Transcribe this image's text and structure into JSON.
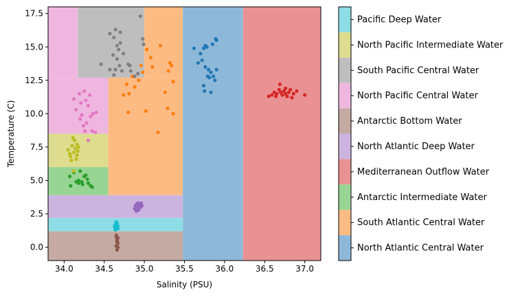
{
  "chart_data": {
    "type": "scatter",
    "title": "",
    "xlabel": "Salinity (PSU)",
    "ylabel": "Temperature (C)",
    "xlim": [
      33.8,
      37.2
    ],
    "ylim": [
      -1.0,
      18.0
    ],
    "xticks": [
      {
        "value": 34.0,
        "label": "34.0"
      },
      {
        "value": 34.5,
        "label": "34.5"
      },
      {
        "value": 35.0,
        "label": "35.0"
      },
      {
        "value": 35.5,
        "label": "35.5"
      },
      {
        "value": 36.0,
        "label": "36.0"
      },
      {
        "value": 36.5,
        "label": "36.5"
      },
      {
        "value": 37.0,
        "label": "37.0"
      }
    ],
    "yticks": [
      {
        "value": 0.0,
        "label": "0.0"
      },
      {
        "value": 2.5,
        "label": "2.5"
      },
      {
        "value": 5.0,
        "label": "5.0"
      },
      {
        "value": 7.5,
        "label": "7.5"
      },
      {
        "value": 10.0,
        "label": "10.0"
      },
      {
        "value": 12.5,
        "label": "12.5"
      },
      {
        "value": 15.0,
        "label": "15.0"
      },
      {
        "value": 17.5,
        "label": "17.5"
      }
    ],
    "grid": false,
    "colorbar_labels": [
      "North Atlantic Central Water",
      "South Atlantic Central Water",
      "Antarctic Intermediate Water",
      "Mediterranean Outflow Water",
      "North Atlantic Deep Water",
      "Antarctic Bottom Water",
      "North Pacific Central Water",
      "South Pacific Central Water",
      "North Pacific Intermediate Water",
      "Pacific Deep Water"
    ],
    "colorbar_colors": [
      "#8eb8d9",
      "#fdbb84",
      "#98d594",
      "#ea9293",
      "#cbb4e0",
      "#c4aaa3",
      "#efb7e0",
      "#bebebe",
      "#dedc8e",
      "#8edde6"
    ],
    "regions": [
      {
        "name": "Antarctic Bottom Water",
        "x": [
          33.8,
          35.48
        ],
        "y": [
          -1.0,
          1.2
        ],
        "color": "#c4aaa3"
      },
      {
        "name": "Pacific Deep Water",
        "x": [
          33.8,
          35.48
        ],
        "y": [
          1.2,
          2.2
        ],
        "color": "#8eddE6"
      },
      {
        "name": "North Atlantic Deep Water",
        "x": [
          33.8,
          35.48
        ],
        "y": [
          2.2,
          3.9
        ],
        "color": "#cbb4e0"
      },
      {
        "name": "Antarctic Intermediate Water",
        "x": [
          33.8,
          34.55
        ],
        "y": [
          3.9,
          6.0
        ],
        "color": "#98d594"
      },
      {
        "name": "North Pacific Intermediate Water",
        "x": [
          33.8,
          34.55
        ],
        "y": [
          6.0,
          8.5
        ],
        "color": "#dedc8e"
      },
      {
        "name": "North Pacific Central Water",
        "x": [
          33.8,
          34.55
        ],
        "y": [
          8.5,
          12.7
        ],
        "color": "#efb7e0"
      },
      {
        "name": "North Pacific Central Water",
        "x": [
          33.8,
          34.17
        ],
        "y": [
          12.7,
          18.0
        ],
        "color": "#efb7e0"
      },
      {
        "name": "South Pacific Central Water",
        "x": [
          34.17,
          35.0
        ],
        "y": [
          12.7,
          18.0
        ],
        "color": "#bebebe"
      },
      {
        "name": "South Atlantic Central Water",
        "x": [
          34.55,
          35.48
        ],
        "y": [
          3.9,
          12.7
        ],
        "color": "#fdbb84"
      },
      {
        "name": "South Atlantic Central Water",
        "x": [
          35.0,
          35.48
        ],
        "y": [
          12.7,
          18.0
        ],
        "color": "#fdbb84"
      },
      {
        "name": "North Atlantic Central Water",
        "x": [
          35.48,
          36.23
        ],
        "y": [
          -1.0,
          18.0
        ],
        "color": "#8eb8d9"
      },
      {
        "name": "Mediterranean Outflow Water",
        "x": [
          36.23,
          37.2
        ],
        "y": [
          -1.0,
          18.0
        ],
        "color": "#ea9293"
      }
    ],
    "series": [
      {
        "name": "North Atlantic Central Water",
        "color": "#1f77b4",
        "points": [
          [
            35.62,
            14.9
          ],
          [
            35.7,
            14.5
          ],
          [
            35.74,
            14.9
          ],
          [
            35.76,
            15.1
          ],
          [
            35.78,
            15.0
          ],
          [
            35.85,
            15.2
          ],
          [
            35.89,
            15.6
          ],
          [
            35.9,
            15.5
          ],
          [
            35.67,
            13.8
          ],
          [
            35.72,
            14.0
          ],
          [
            35.76,
            13.5
          ],
          [
            35.8,
            13.3
          ],
          [
            35.83,
            13.1
          ],
          [
            35.86,
            12.8
          ],
          [
            35.9,
            13.3
          ],
          [
            35.79,
            12.8
          ],
          [
            35.81,
            12.7
          ],
          [
            35.74,
            12.1
          ],
          [
            35.88,
            12.5
          ],
          [
            35.75,
            11.7
          ],
          [
            35.83,
            11.6
          ]
        ]
      },
      {
        "name": "South Atlantic Central Water",
        "color": "#ff7f0e",
        "points": [
          [
            34.74,
            11.4
          ],
          [
            34.78,
            12.2
          ],
          [
            34.81,
            11.5
          ],
          [
            34.85,
            12.8
          ],
          [
            34.88,
            12.0
          ],
          [
            34.93,
            12.5
          ],
          [
            34.96,
            13.6
          ],
          [
            34.98,
            13.1
          ],
          [
            35.03,
            14.8
          ],
          [
            35.08,
            14.2
          ],
          [
            35.1,
            13.5
          ],
          [
            35.2,
            15.1
          ],
          [
            35.26,
            11.6
          ],
          [
            35.3,
            13.2
          ],
          [
            35.32,
            13.8
          ],
          [
            35.34,
            13.6
          ],
          [
            35.36,
            12.4
          ],
          [
            34.8,
            10.1
          ],
          [
            35.02,
            10.2
          ],
          [
            35.29,
            10.4
          ],
          [
            35.36,
            10.0
          ],
          [
            35.17,
            8.6
          ]
        ]
      },
      {
        "name": "Antarctic Intermediate Water",
        "color": "#2ca02c",
        "points": [
          [
            34.07,
            5.3
          ],
          [
            34.08,
            4.6
          ],
          [
            34.12,
            5.6
          ],
          [
            34.15,
            4.9
          ],
          [
            34.18,
            4.8
          ],
          [
            34.2,
            5.7
          ],
          [
            34.23,
            4.7
          ],
          [
            34.25,
            5.3
          ],
          [
            34.27,
            5.4
          ],
          [
            34.29,
            5.1
          ],
          [
            34.3,
            4.8
          ],
          [
            34.33,
            4.6
          ],
          [
            34.35,
            4.5
          ],
          [
            34.22,
            4.9
          ],
          [
            34.18,
            5.0
          ]
        ]
      },
      {
        "name": "Mediterranean Outflow Water",
        "color": "#d62728",
        "points": [
          [
            36.55,
            11.3
          ],
          [
            36.59,
            11.4
          ],
          [
            36.62,
            11.6
          ],
          [
            36.65,
            11.5
          ],
          [
            36.68,
            11.8
          ],
          [
            36.7,
            11.6
          ],
          [
            36.72,
            11.4
          ],
          [
            36.74,
            11.7
          ],
          [
            36.76,
            11.5
          ],
          [
            36.78,
            11.3
          ],
          [
            36.8,
            11.6
          ],
          [
            36.82,
            11.8
          ],
          [
            36.84,
            11.2
          ],
          [
            36.86,
            11.5
          ],
          [
            36.9,
            11.7
          ],
          [
            36.69,
            12.2
          ],
          [
            36.64,
            11.3
          ],
          [
            36.76,
            11.9
          ],
          [
            37.0,
            11.4
          ]
        ]
      },
      {
        "name": "North Atlantic Deep Water",
        "color": "#9467bd",
        "points": [
          [
            34.88,
            2.9
          ],
          [
            34.89,
            3.1
          ],
          [
            34.9,
            3.2
          ],
          [
            34.91,
            3.0
          ],
          [
            34.92,
            3.3
          ],
          [
            34.93,
            2.8
          ],
          [
            34.94,
            3.2
          ],
          [
            34.95,
            3.0
          ],
          [
            34.96,
            3.3
          ],
          [
            34.9,
            2.7
          ],
          [
            34.93,
            3.1
          ],
          [
            34.97,
            3.1
          ]
        ]
      },
      {
        "name": "Antarctic Bottom Water",
        "color": "#8c564b",
        "points": [
          [
            34.65,
            0.9
          ],
          [
            34.66,
            0.6
          ],
          [
            34.67,
            0.3
          ],
          [
            34.65,
            0.1
          ],
          [
            34.66,
            -0.2
          ],
          [
            34.67,
            0.7
          ],
          [
            34.66,
            0.4
          ],
          [
            34.65,
            0.8
          ],
          [
            34.67,
            0.0
          ],
          [
            34.66,
            0.5
          ]
        ]
      },
      {
        "name": "North Pacific Central Water",
        "color": "#e377c2",
        "points": [
          [
            34.12,
            11.1
          ],
          [
            34.15,
            10.3
          ],
          [
            34.19,
            11.5
          ],
          [
            34.21,
            10.8
          ],
          [
            34.25,
            11.7
          ],
          [
            34.27,
            11.0
          ],
          [
            34.3,
            10.6
          ],
          [
            34.33,
            9.8
          ],
          [
            34.36,
            10.0
          ],
          [
            34.4,
            10.1
          ],
          [
            34.2,
            9.6
          ],
          [
            34.24,
            9.1
          ],
          [
            34.26,
            8.7
          ],
          [
            34.3,
            8.0
          ],
          [
            34.35,
            8.7
          ],
          [
            34.39,
            8.6
          ],
          [
            34.22,
            9.9
          ],
          [
            34.28,
            9.3
          ],
          [
            34.32,
            11.4
          ]
        ]
      },
      {
        "name": "South Pacific Central Water",
        "color": "#7f7f7f",
        "points": [
          [
            34.57,
            16.0
          ],
          [
            34.64,
            16.3
          ],
          [
            34.7,
            16.1
          ],
          [
            34.95,
            17.3
          ],
          [
            34.62,
            15.7
          ],
          [
            34.66,
            15.1
          ],
          [
            34.68,
            14.8
          ],
          [
            34.7,
            15.3
          ],
          [
            34.98,
            15.6
          ],
          [
            34.99,
            15.2
          ],
          [
            34.61,
            14.4
          ],
          [
            34.74,
            14.5
          ],
          [
            34.66,
            14.1
          ],
          [
            34.69,
            13.6
          ],
          [
            34.8,
            13.7
          ],
          [
            34.82,
            13.6
          ],
          [
            34.83,
            13.2
          ],
          [
            34.88,
            12.8
          ],
          [
            34.92,
            13.0
          ],
          [
            34.64,
            13.3
          ],
          [
            34.72,
            13.2
          ],
          [
            34.46,
            13.7
          ],
          [
            34.57,
            13.3
          ],
          [
            34.62,
            12.9
          ]
        ]
      },
      {
        "name": "North Pacific Intermediate Water",
        "color": "#bcbd22",
        "points": [
          [
            34.05,
            7.3
          ],
          [
            34.08,
            6.8
          ],
          [
            34.1,
            7.6
          ],
          [
            34.12,
            7.1
          ],
          [
            34.14,
            7.4
          ],
          [
            34.16,
            6.9
          ],
          [
            34.18,
            7.5
          ],
          [
            34.11,
            8.2
          ],
          [
            34.13,
            8.0
          ],
          [
            34.16,
            7.7
          ],
          [
            34.09,
            6.5
          ],
          [
            34.15,
            6.6
          ],
          [
            34.07,
            7.0
          ],
          [
            34.12,
            5.7
          ],
          [
            34.17,
            7.2
          ]
        ]
      },
      {
        "name": "Pacific Deep Water",
        "color": "#17becf",
        "points": [
          [
            34.63,
            1.5
          ],
          [
            34.64,
            1.7
          ],
          [
            34.65,
            1.4
          ],
          [
            34.66,
            1.8
          ],
          [
            34.67,
            1.6
          ],
          [
            34.64,
            1.3
          ],
          [
            34.66,
            1.5
          ],
          [
            34.65,
            1.7
          ],
          [
            34.63,
            1.6
          ],
          [
            34.67,
            1.4
          ],
          [
            34.65,
            1.9
          ]
        ]
      }
    ]
  }
}
